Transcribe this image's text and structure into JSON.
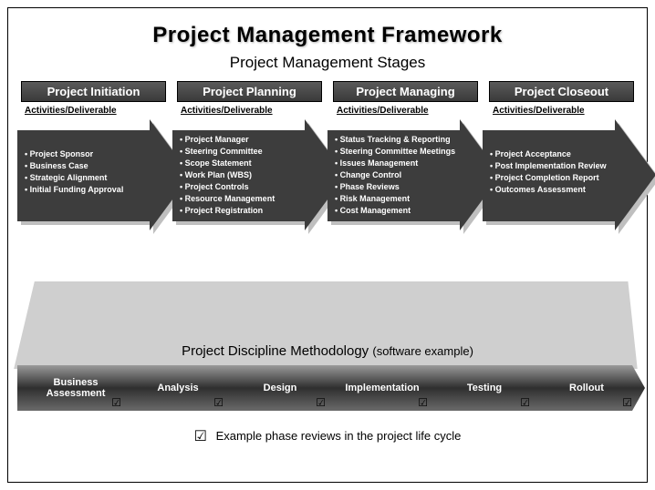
{
  "title": "Project Management Framework",
  "subtitle": "Project Management Stages",
  "stages": [
    {
      "header": "Project Initiation",
      "sub": "Activities/Deliverable",
      "items": [
        "Project Sponsor",
        "Business Case",
        "Strategic Alignment",
        "Initial Funding Approval"
      ]
    },
    {
      "header": "Project Planning",
      "sub": "Activities/Deliverable",
      "items": [
        "Project Manager",
        "Steering Committee",
        "Scope Statement",
        "Work Plan (WBS)",
        "Project Controls",
        "Resource Management",
        "Project Registration"
      ]
    },
    {
      "header": "Project Managing",
      "sub": "Activities/Deliverable",
      "items": [
        "Status Tracking & Reporting",
        "Steering Committee Meetings",
        "Issues Management",
        "Change Control",
        "Phase Reviews",
        "Risk Management",
        "Cost Management"
      ]
    },
    {
      "header": "Project Closeout",
      "sub": "Activities/Deliverable",
      "items": [
        "Project Acceptance",
        "Post Implementation Review",
        "Project Completion Report",
        "Outcomes Assessment"
      ]
    }
  ],
  "disciplineTitle": "Project Discipline Methodology",
  "disciplineParen": "(software example)",
  "phases": [
    "Business Assessment",
    "Analysis",
    "Design",
    "Implementation",
    "Testing",
    "Rollout"
  ],
  "footer": "Example phase reviews in the project life cycle",
  "style": {
    "arrowFill": "#3d3d3d",
    "arrowShadow": "#bfbfbf",
    "headerGradFrom": "#5a5a5a",
    "headerGradTo": "#3a3a3a",
    "funnelFill": "#cfcfcf",
    "chevronDark": "#2f2f2f",
    "chevronMid": "#6a6a6a",
    "chevronLight": "#9a9a9a",
    "arrowW": 190,
    "arrowBodyW": 145,
    "arrowH": 110,
    "arrowGapX": 170,
    "chevronW": 128,
    "chevronH": 50,
    "chevronNotch": 14,
    "chevronGapX": 112
  }
}
